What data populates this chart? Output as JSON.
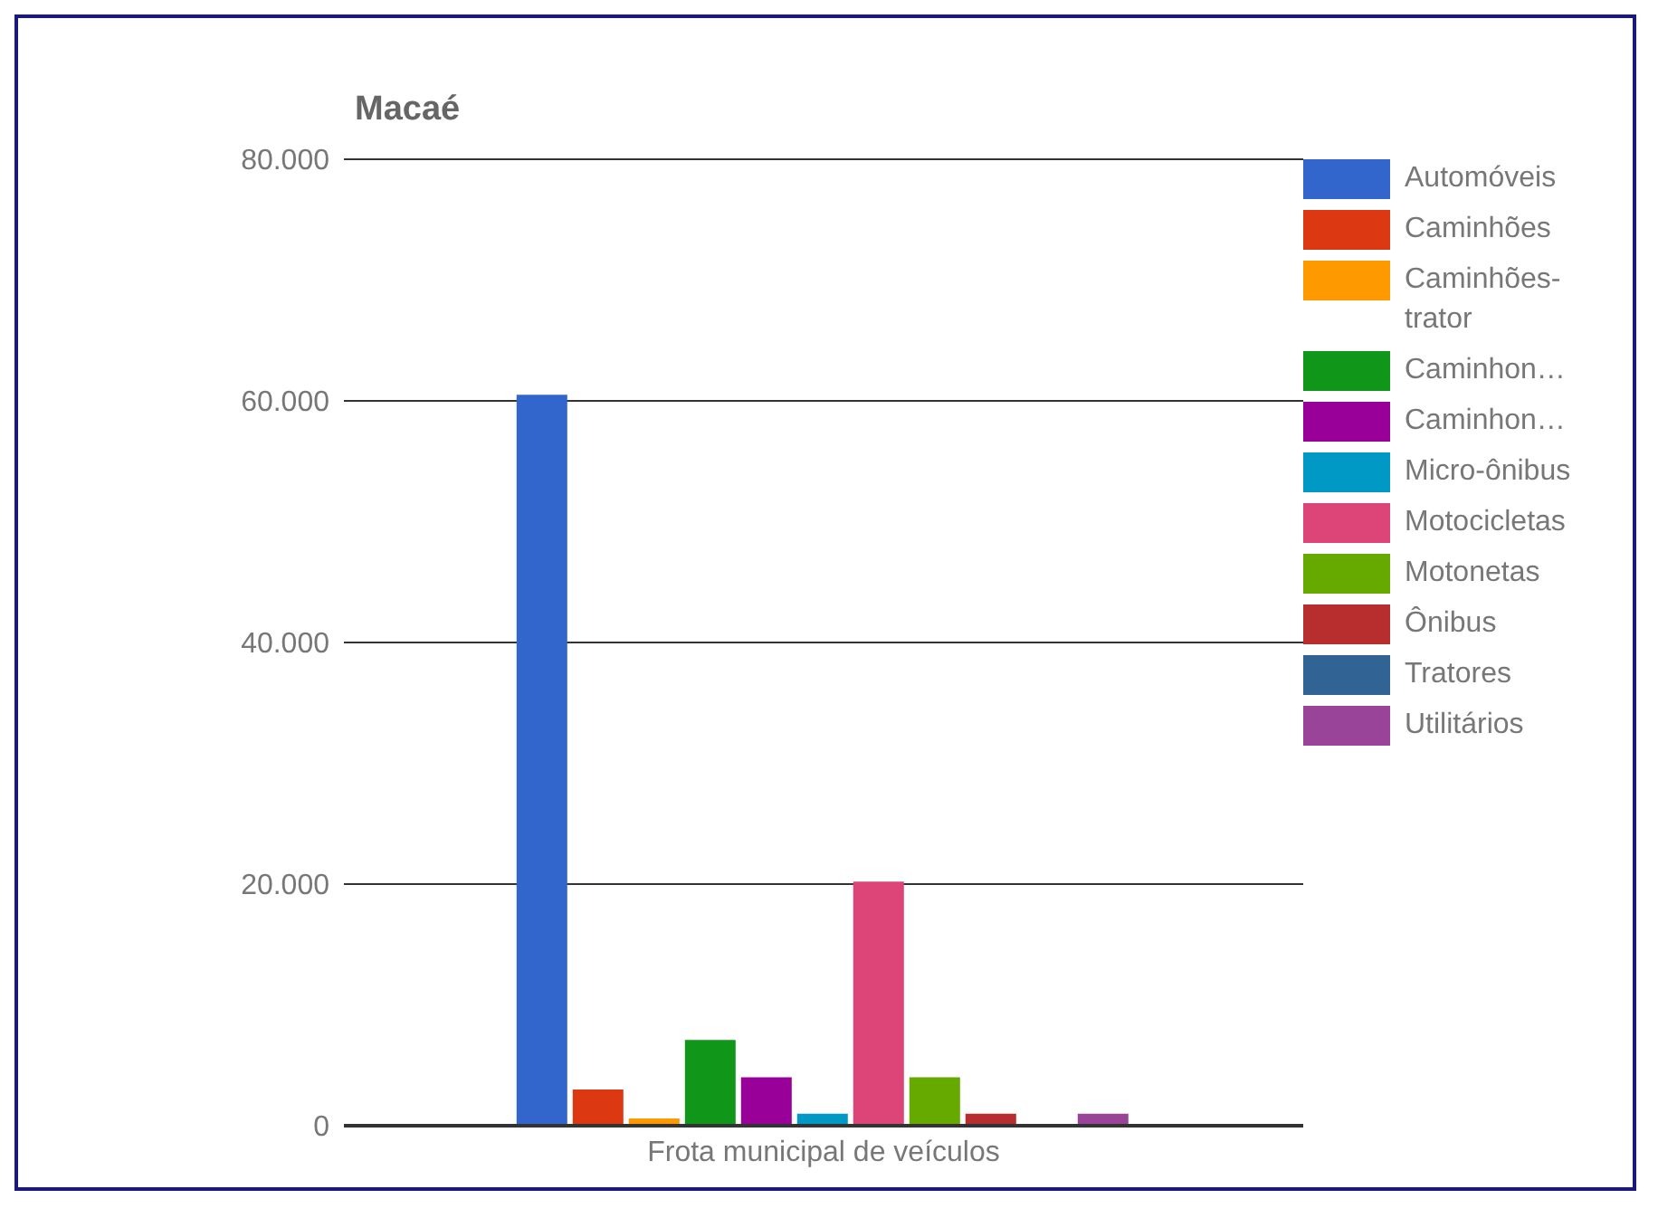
{
  "chart_data": {
    "type": "bar",
    "title": "Macaé",
    "categories": [
      "Frota municipal de veículos"
    ],
    "series": [
      {
        "name": "Automóveis",
        "color": "#3366cc",
        "values": [
          60500
        ]
      },
      {
        "name": "Caminhões",
        "color": "#dc3912",
        "values": [
          3000
        ]
      },
      {
        "name": "Caminhões-trator",
        "color": "#ff9900",
        "values": [
          600
        ]
      },
      {
        "name": "Caminhon…",
        "color": "#109618",
        "values": [
          7100
        ]
      },
      {
        "name": "Caminhon…",
        "color": "#990099",
        "values": [
          4000
        ]
      },
      {
        "name": "Micro-ônibus",
        "color": "#0099c6",
        "values": [
          1000
        ]
      },
      {
        "name": "Motocicletas",
        "color": "#dd4477",
        "values": [
          20200
        ]
      },
      {
        "name": "Motonetas",
        "color": "#66aa00",
        "values": [
          4000
        ]
      },
      {
        "name": "Ônibus",
        "color": "#b82e2e",
        "values": [
          1000
        ]
      },
      {
        "name": "Tratores",
        "color": "#316395",
        "values": [
          100
        ]
      },
      {
        "name": "Utilitários",
        "color": "#994499",
        "values": [
          1000
        ]
      }
    ],
    "ylim": [
      0,
      80000
    ],
    "yticks": [
      {
        "value": 0,
        "label": "0"
      },
      {
        "value": 20000,
        "label": "20.000"
      },
      {
        "value": 40000,
        "label": "40.000"
      },
      {
        "value": 60000,
        "label": "60.000"
      },
      {
        "value": 80000,
        "label": "80.000"
      }
    ],
    "grid": "y",
    "legend": "right"
  }
}
